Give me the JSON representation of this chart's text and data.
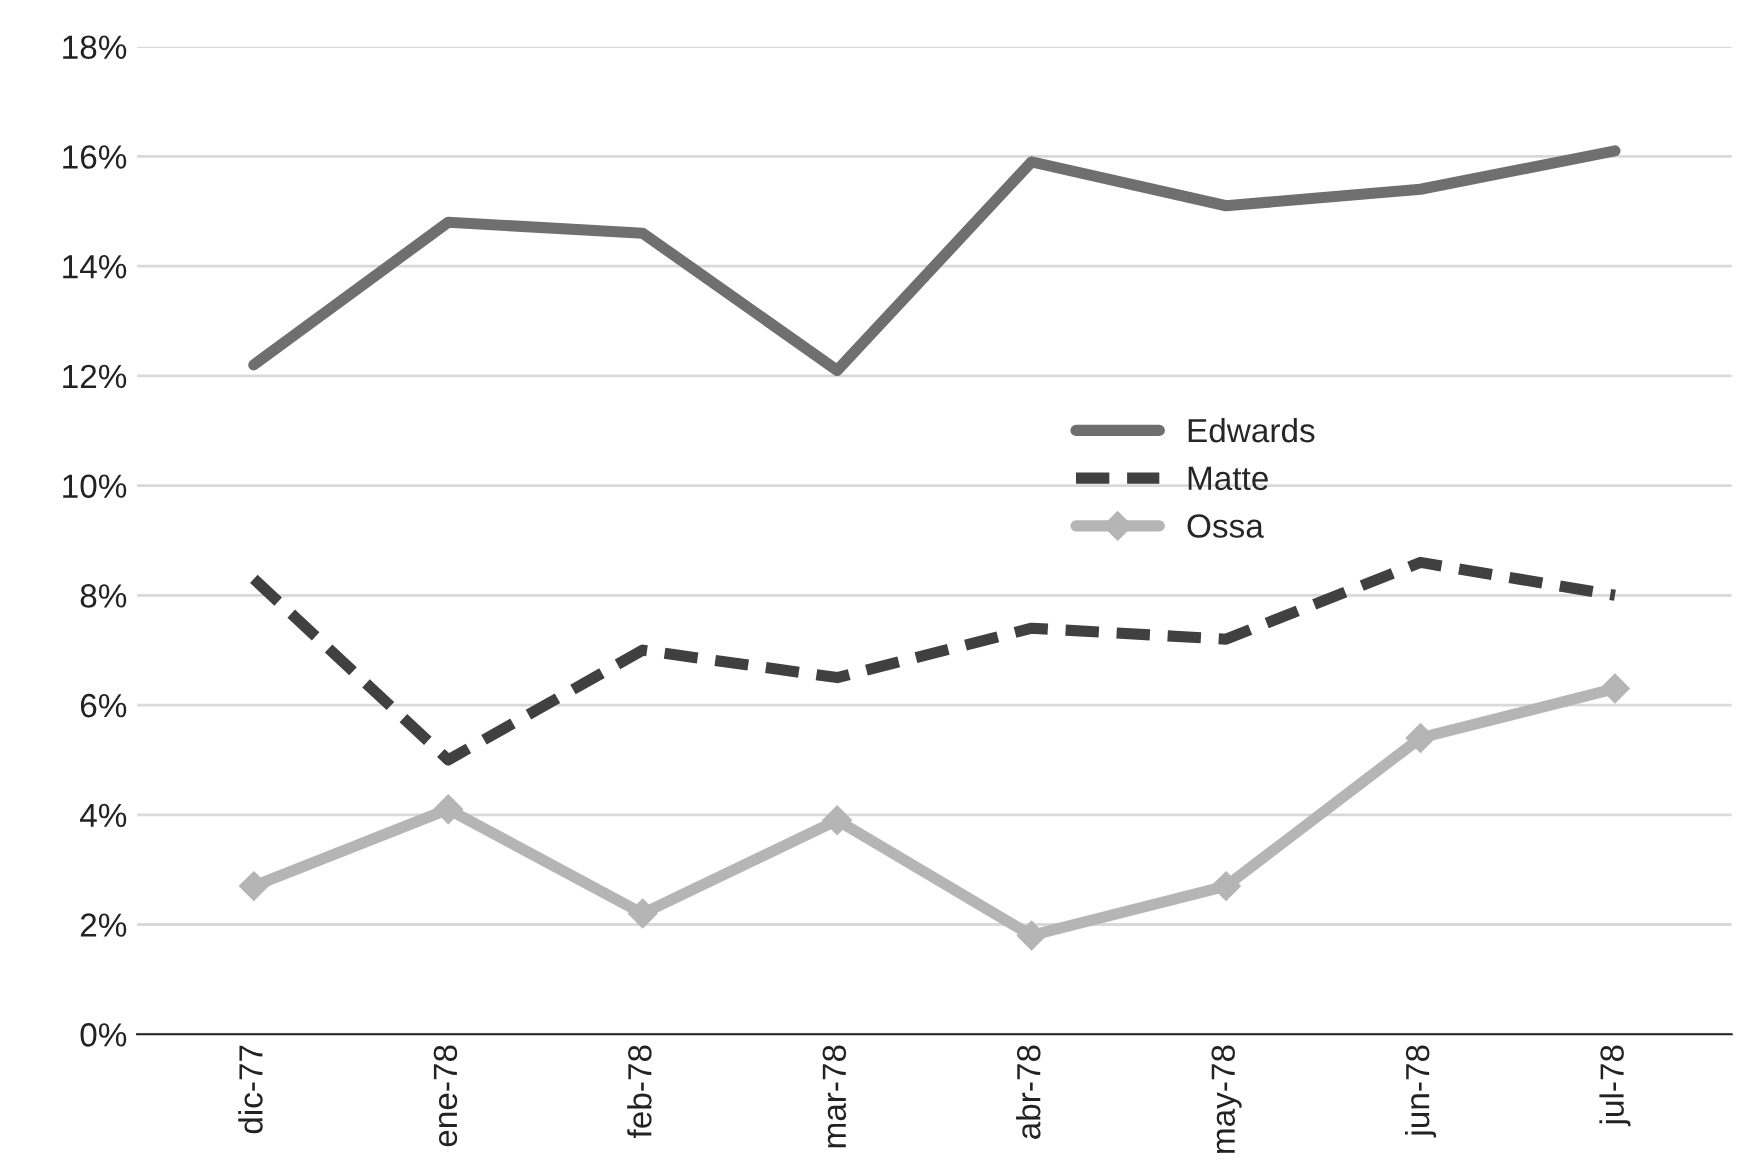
{
  "chart_data": {
    "type": "line",
    "categories": [
      "dic-77",
      "ene-78",
      "feb-78",
      "mar-78",
      "abr-78",
      "may-78",
      "jun-78",
      "jul-78"
    ],
    "series": [
      {
        "name": "Edwards",
        "color": "#6f6f6f",
        "line_style": "solid",
        "marker": "none",
        "values": [
          12.2,
          14.8,
          14.6,
          12.1,
          15.9,
          15.1,
          15.4,
          16.1
        ]
      },
      {
        "name": "Matte",
        "color": "#404040",
        "line_style": "dashed",
        "marker": "none",
        "values": [
          8.3,
          5.0,
          7.0,
          6.5,
          7.4,
          7.2,
          8.6,
          8.0
        ]
      },
      {
        "name": "Ossa",
        "color": "#b5b5b5",
        "line_style": "solid",
        "marker": "diamond",
        "values": [
          2.7,
          4.1,
          2.2,
          3.9,
          1.8,
          2.7,
          5.4,
          6.3
        ]
      }
    ],
    "ylim": [
      0,
      18
    ],
    "yticks": [
      {
        "value": 0,
        "label": "0%"
      },
      {
        "value": 2,
        "label": "2%"
      },
      {
        "value": 4,
        "label": "4%"
      },
      {
        "value": 6,
        "label": "6%"
      },
      {
        "value": 8,
        "label": "8%"
      },
      {
        "value": 10,
        "label": "10%"
      },
      {
        "value": 12,
        "label": "12%"
      },
      {
        "value": 14,
        "label": "14%"
      },
      {
        "value": 16,
        "label": "16%"
      },
      {
        "value": 18,
        "label": "18%"
      }
    ],
    "grid": "y",
    "legend": "right"
  }
}
